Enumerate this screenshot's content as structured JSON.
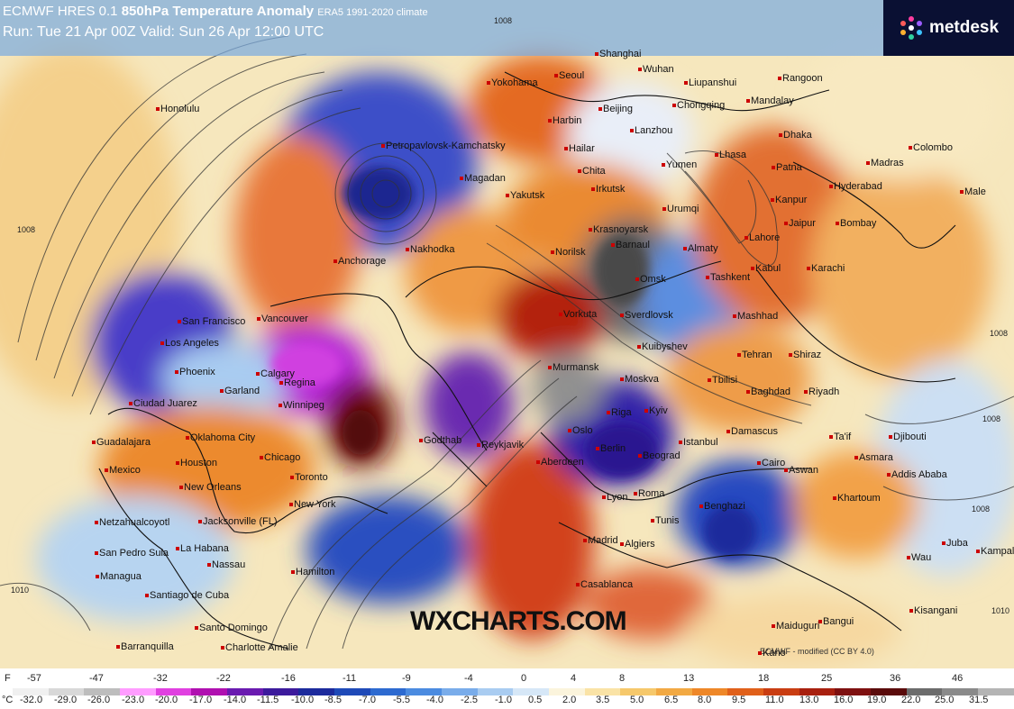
{
  "header": {
    "model": "ECMWF HRES 0.1",
    "field": "850hPa Temperature Anomaly",
    "climate": "ERA5 1991-2020 climate",
    "run_line": "Run: Tue 21 Apr 00Z Valid: Sun 26 Apr 12:00 UTC"
  },
  "logo": {
    "text": "metdesk",
    "icon": "metdesk-star-icon"
  },
  "watermark": "WXCHARTS.COM",
  "credit": "ECMWF - modified (CC BY 4.0)",
  "isobar_labels": [
    "1008",
    "1008",
    "1008",
    "1010",
    "1010",
    "1008",
    "1008"
  ],
  "cities": [
    "Honolulu",
    "Anchorage",
    "Nakhodka",
    "Petropavlovsk-Kamchatsky",
    "Magadan",
    "Yakutsk",
    "Norilsk",
    "Vorkuta",
    "Krasnoyarsk",
    "Barnaul",
    "Omsk",
    "Sverdlovsk",
    "Kuibyshev",
    "Irkutsk",
    "Harbin",
    "Hailar",
    "Chita",
    "Beijing",
    "Seoul",
    "Yokohama",
    "Shanghai",
    "Wuhan",
    "Liupanshui",
    "Chongqing",
    "Lanzhou",
    "Urumqi",
    "Almaty",
    "Yumen",
    "Lhasa",
    "Mandalay",
    "Rangoon",
    "Dhaka",
    "Patna",
    "Kanpur",
    "Madras",
    "Colombo",
    "Hyderabad",
    "Bombay",
    "Jaipur",
    "Lahore",
    "Karachi",
    "Kabul",
    "Tashkent",
    "Mashhad",
    "Tehran",
    "Shiraz",
    "Baghdad",
    "Riyadh",
    "Ta'if",
    "Djibouti",
    "Asmara",
    "Addis Ababa",
    "Khartoum",
    "Aswan",
    "Cairo",
    "Damascus",
    "Tbilisi",
    "Istanbul",
    "Kyiv",
    "Moskva",
    "Riga",
    "Oslo",
    "Berlin",
    "Beograd",
    "Roma",
    "Aberdeen",
    "Lyon",
    "Madrid",
    "Algiers",
    "Tunis",
    "Benghazi",
    "Casablanca",
    "Murmansk",
    "Reykjavik",
    "Godthab",
    "Winnipeg",
    "Calgary",
    "Regina",
    "Vancouver",
    "San Francisco",
    "Los Angeles",
    "Phoenix",
    "Garland",
    "Oklahoma City",
    "Ciudad Juarez",
    "Guadalajara",
    "Mexico",
    "Houston",
    "Chicago",
    "Toronto",
    "New Orleans",
    "New York",
    "Jacksonville (FL)",
    "Hamilton",
    "Netzahualcoyotl",
    "San Pedro Sula",
    "La Habana",
    "Nassau",
    "Managua",
    "Santiago de Cuba",
    "Santo Domingo",
    "Barranquilla",
    "Charlotte Amalie",
    "Male",
    "Juba",
    "Kampala",
    "Wau",
    "Kisangani",
    "Bangui",
    "Maiduguri",
    "Kano"
  ],
  "legend": {
    "f_unit": "F",
    "f_values": [
      "-57",
      "-47",
      "-32",
      "-22",
      "-16",
      "-11",
      "-9",
      "-4",
      "0",
      "4",
      "8",
      "13",
      "18",
      "25",
      "36",
      "46"
    ],
    "c_unit": "°C",
    "c_values": [
      "-32.0",
      "-29.0",
      "-26.0",
      "-23.0",
      "-20.0",
      "-17.0",
      "-14.0",
      "-11.5",
      "-10.0",
      "-8.5",
      "-7.0",
      "-5.5",
      "-4.0",
      "-2.5",
      "-1.0",
      "0.5",
      "2.0",
      "3.5",
      "5.0",
      "6.5",
      "8.0",
      "9.5",
      "11.0",
      "13.0",
      "16.0",
      "19.0",
      "22.0",
      "25.0",
      "31.5"
    ],
    "colors": [
      "#f0f0f0",
      "#d8d8d8",
      "#bdbdbd",
      "#ff9cff",
      "#e040e0",
      "#b010b0",
      "#6a1ab0",
      "#3c1a9c",
      "#1c2a9c",
      "#1f4ab8",
      "#2d6ad0",
      "#4b8be0",
      "#79acea",
      "#a9ccf1",
      "#d6e7f7",
      "#fbf4dc",
      "#fae3a6",
      "#f6c86b",
      "#f2a943",
      "#ee8728",
      "#e0601a",
      "#c93d12",
      "#a8200f",
      "#7e1010",
      "#5a0b0b",
      "#6c6c6c",
      "#8a8a8a",
      "#b4b4b4"
    ]
  }
}
